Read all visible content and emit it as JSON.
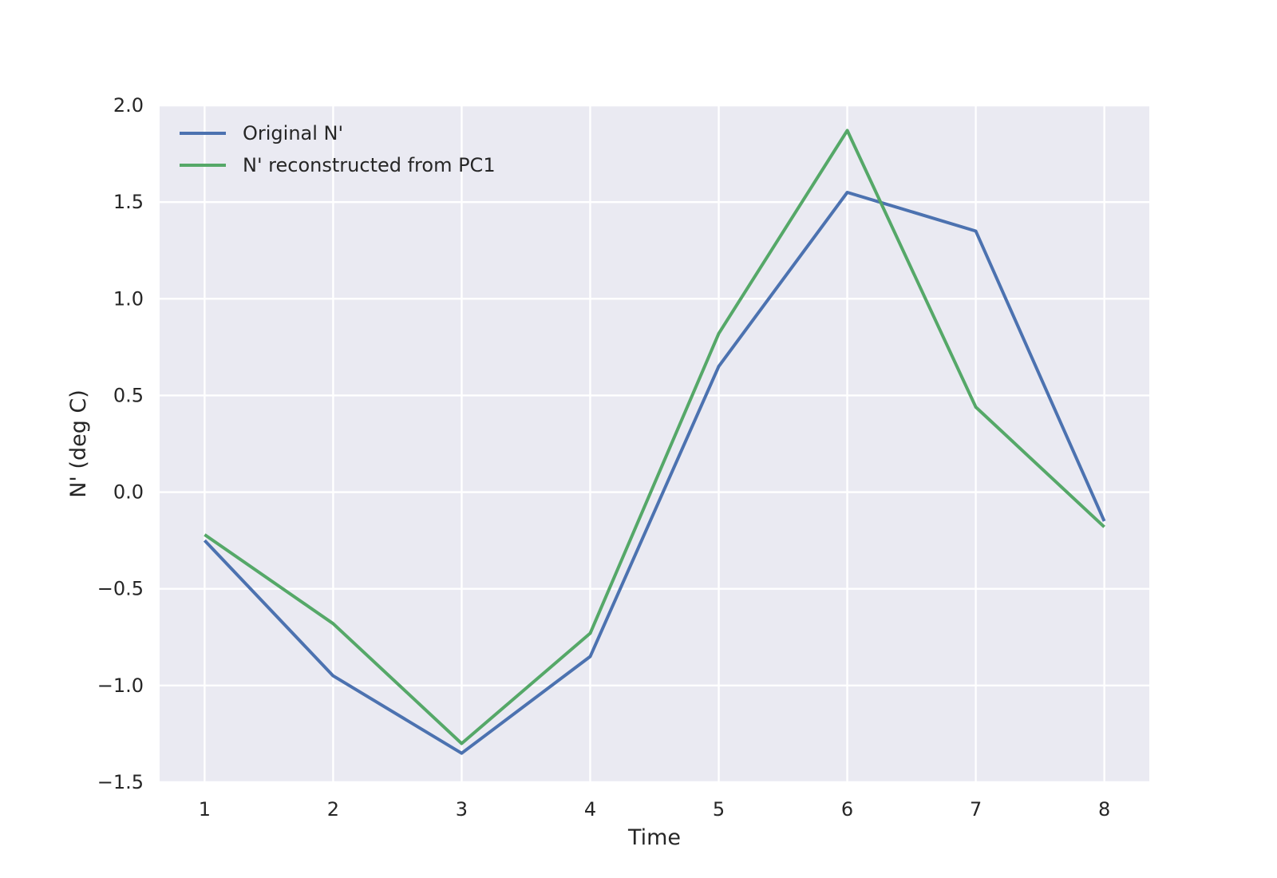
{
  "chart_data": {
    "type": "line",
    "title": "",
    "xlabel": "Time",
    "ylabel": "N' (deg C)",
    "x": [
      1,
      2,
      3,
      4,
      5,
      6,
      7,
      8
    ],
    "xticks": [
      "1",
      "2",
      "3",
      "4",
      "5",
      "6",
      "7",
      "8"
    ],
    "xlim": [
      0.65,
      8.35
    ],
    "ylim": [
      -1.5,
      2.0
    ],
    "yticks": [
      -1.5,
      -1.0,
      -0.5,
      0.0,
      0.5,
      1.0,
      1.5,
      2.0
    ],
    "ytick_labels": [
      "−1.5",
      "−1.0",
      "−0.5",
      "0.0",
      "0.5",
      "1.0",
      "1.5",
      "2.0"
    ],
    "grid": true,
    "legend_position": "top-left",
    "colors": {
      "background": "#eaeaf2",
      "grid": "#ffffff"
    },
    "series": [
      {
        "name": "Original N'",
        "color": "#4c72b0",
        "values": [
          -0.25,
          -0.95,
          -1.35,
          -0.85,
          0.65,
          1.55,
          1.35,
          -0.15
        ]
      },
      {
        "name": "N' reconstructed from PC1",
        "color": "#55a868",
        "values": [
          -0.22,
          -0.68,
          -1.3,
          -0.73,
          0.82,
          1.87,
          0.44,
          -0.18
        ]
      }
    ]
  }
}
